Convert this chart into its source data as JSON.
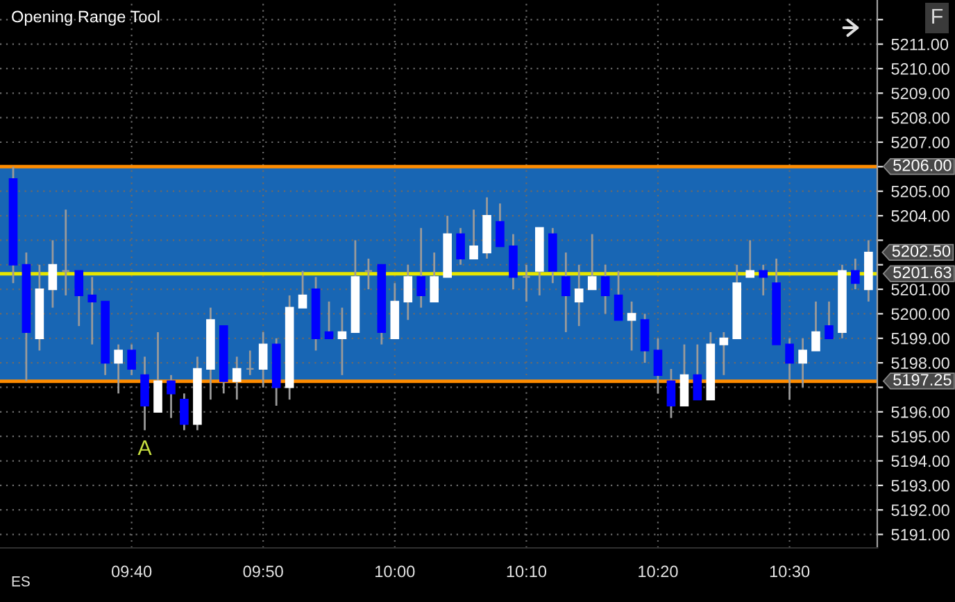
{
  "chart_data": {
    "type": "candlestick",
    "title": "Opening Range Tool",
    "x": [
      9.5167,
      9.5333,
      9.55,
      9.5667,
      9.5833,
      9.6,
      9.6167,
      9.6333,
      9.65,
      9.6667,
      9.6833,
      9.7,
      9.7167,
      9.7333,
      9.75,
      9.7667,
      9.7833,
      9.8,
      9.8167,
      9.8333,
      9.85,
      9.8667,
      9.8833,
      9.9,
      9.9167,
      9.9333,
      9.95,
      9.9667,
      9.9833,
      10,
      10.0167,
      10.0333,
      10.05,
      10.0667,
      10.0833,
      10.1,
      10.1167,
      10.1333,
      10.15,
      10.1667,
      10.1833,
      10.2,
      10.2167,
      10.2333,
      10.25,
      10.2667,
      10.2833,
      10.3,
      10.3167,
      10.3333,
      10.35,
      10.3667,
      10.3833,
      10.4,
      10.4167,
      10.4333,
      10.45,
      10.4667,
      10.4833,
      10.5,
      10.5167,
      10.5333,
      10.55,
      10.5667,
      10.5833,
      10.6
    ],
    "ohlc": [
      [
        5205.5,
        5206,
        5201.25,
        5202
      ],
      [
        5202,
        5202.5,
        5197.25,
        5199.25
      ],
      [
        5199,
        5202,
        5198.5,
        5201
      ],
      [
        5201,
        5203,
        5200.25,
        5202
      ],
      [
        5201.75,
        5204.25,
        5200.75,
        5201.75
      ],
      [
        5201.75,
        5201.75,
        5199.5,
        5200.75
      ],
      [
        5200.75,
        5201.5,
        5198.75,
        5200.5
      ],
      [
        5200.5,
        5200.5,
        5197.5,
        5198
      ],
      [
        5198,
        5198.75,
        5196.75,
        5198.5
      ],
      [
        5198.5,
        5198.75,
        5197.5,
        5197.75
      ],
      [
        5197.5,
        5198.25,
        5195.25,
        5196.25
      ],
      [
        5196,
        5199.25,
        5196,
        5197.25
      ],
      [
        5197.25,
        5197.5,
        5195.75,
        5196.75
      ],
      [
        5196.5,
        5196.75,
        5195.25,
        5195.5
      ],
      [
        5195.5,
        5198.25,
        5195.25,
        5197.75
      ],
      [
        5197.75,
        5200.25,
        5196.5,
        5199.75
      ],
      [
        5199.5,
        5199.5,
        5196.75,
        5197.25
      ],
      [
        5197.25,
        5198.25,
        5196.5,
        5197.75
      ],
      [
        5197.75,
        5198.5,
        5197.5,
        5197.75
      ],
      [
        5197.75,
        5199.25,
        5197,
        5198.75
      ],
      [
        5198.75,
        5199,
        5196.25,
        5197
      ],
      [
        5197,
        5200.75,
        5196.5,
        5200.25
      ],
      [
        5200.25,
        5201.75,
        5200.25,
        5200.75
      ],
      [
        5201,
        5201.5,
        5198.5,
        5199
      ],
      [
        5199.25,
        5200.5,
        5199,
        5199
      ],
      [
        5199,
        5200.25,
        5197.5,
        5199.25
      ],
      [
        5199.25,
        5203,
        5199.25,
        5201.5
      ],
      [
        5201.75,
        5202.25,
        5201,
        5201.75
      ],
      [
        5202,
        5202,
        5198.75,
        5199.25
      ],
      [
        5199,
        5201.25,
        5199,
        5200.5
      ],
      [
        5200.5,
        5202,
        5199.75,
        5201.5
      ],
      [
        5201.5,
        5203.5,
        5200.25,
        5200.75
      ],
      [
        5200.5,
        5202.5,
        5200.5,
        5201.5
      ],
      [
        5201.5,
        5204,
        5201.5,
        5203.25
      ],
      [
        5203.25,
        5203.5,
        5202,
        5202.25
      ],
      [
        5202.25,
        5204.25,
        5202.25,
        5202.75
      ],
      [
        5202.5,
        5204.75,
        5202.25,
        5204
      ],
      [
        5203.75,
        5204.5,
        5202.75,
        5202.75
      ],
      [
        5202.75,
        5203.25,
        5201,
        5201.5
      ],
      [
        5201.5,
        5202,
        5200.5,
        5201.5
      ],
      [
        5201.75,
        5203.5,
        5200.75,
        5203.5
      ],
      [
        5203.25,
        5203.5,
        5201.25,
        5201.75
      ],
      [
        5201.5,
        5202.5,
        5199.25,
        5200.75
      ],
      [
        5200.5,
        5202,
        5199.5,
        5201
      ],
      [
        5201,
        5203.25,
        5201,
        5201.5
      ],
      [
        5201.5,
        5202,
        5200,
        5200.75
      ],
      [
        5200.75,
        5201.75,
        5199.75,
        5199.75
      ],
      [
        5199.75,
        5200.5,
        5198.5,
        5200
      ],
      [
        5199.75,
        5200,
        5198,
        5198.5
      ],
      [
        5198.5,
        5199,
        5196.75,
        5197.5
      ],
      [
        5197.25,
        5197.75,
        5195.75,
        5196.25
      ],
      [
        5196.25,
        5198.75,
        5196.25,
        5197.5
      ],
      [
        5197.5,
        5198.75,
        5196.5,
        5196.5
      ],
      [
        5196.5,
        5199.25,
        5196.5,
        5198.75
      ],
      [
        5198.75,
        5199.25,
        5197.5,
        5199
      ],
      [
        5199,
        5202,
        5199,
        5201.25
      ],
      [
        5201.5,
        5203,
        5201.5,
        5201.75
      ],
      [
        5201.75,
        5202,
        5200.75,
        5201.5
      ],
      [
        5201.25,
        5202.25,
        5198.75,
        5198.75
      ],
      [
        5198.75,
        5199,
        5196.5,
        5198
      ],
      [
        5198,
        5199,
        5197,
        5198.5
      ],
      [
        5198.5,
        5200.5,
        5198.5,
        5199.25
      ],
      [
        5199.5,
        5200.5,
        5199,
        5199
      ],
      [
        5199.25,
        5202,
        5199,
        5201.75
      ],
      [
        5201.75,
        5202.25,
        5201,
        5201.25
      ],
      [
        5201,
        5203,
        5200.5,
        5202.5
      ]
    ],
    "colors": [
      "#0000ff",
      "#0000ff",
      "#ffffff",
      "#ffffff",
      "#9a9a9a",
      "#0000ff",
      "#0000ff",
      "#0000ff",
      "#ffffff",
      "#0000ff",
      "#0000ff",
      "#ffffff",
      "#0000ff",
      "#0000ff",
      "#ffffff",
      "#ffffff",
      "#0000ff",
      "#ffffff",
      "#9a9a9a",
      "#ffffff",
      "#0000ff",
      "#ffffff",
      "#ffffff",
      "#0000ff",
      "#0000ff",
      "#ffffff",
      "#ffffff",
      "#9a9a9a",
      "#0000ff",
      "#ffffff",
      "#ffffff",
      "#0000ff",
      "#ffffff",
      "#ffffff",
      "#0000ff",
      "#ffffff",
      "#ffffff",
      "#0000ff",
      "#0000ff",
      "#9a9a9a",
      "#ffffff",
      "#0000ff",
      "#0000ff",
      "#ffffff",
      "#ffffff",
      "#0000ff",
      "#0000ff",
      "#ffffff",
      "#0000ff",
      "#0000ff",
      "#0000ff",
      "#ffffff",
      "#0000ff",
      "#ffffff",
      "#ffffff",
      "#ffffff",
      "#ffffff",
      "#0000ff",
      "#0000ff",
      "#0000ff",
      "#ffffff",
      "#ffffff",
      "#0000ff",
      "#ffffff",
      "#0000ff",
      "#ffffff"
    ],
    "xlim": [
      9.5,
      10.6111
    ],
    "ylim": [
      5190.45,
      5212.8
    ],
    "xticks": [
      {
        "value": 9.6667,
        "label": "09:40"
      },
      {
        "value": 9.8333,
        "label": "09:50"
      },
      {
        "value": 10,
        "label": "10:00"
      },
      {
        "value": 10.1667,
        "label": "10:10"
      },
      {
        "value": 10.3333,
        "label": "10:20"
      },
      {
        "value": 10.5,
        "label": "10:30"
      }
    ],
    "yticks": [
      {
        "value": 5191,
        "label": "5191.00"
      },
      {
        "value": 5192,
        "label": "5192.00"
      },
      {
        "value": 5193,
        "label": "5193.00"
      },
      {
        "value": 5194,
        "label": "5194.00"
      },
      {
        "value": 5195,
        "label": "5195.00"
      },
      {
        "value": 5196,
        "label": "5196.00"
      },
      {
        "value": 5197,
        "label": null
      },
      {
        "value": 5198,
        "label": "5198.00"
      },
      {
        "value": 5199,
        "label": "5199.00"
      },
      {
        "value": 5200,
        "label": "5200.00"
      },
      {
        "value": 5201,
        "label": "5201.00"
      },
      {
        "value": 5202,
        "label": null
      },
      {
        "value": 5203,
        "label": null
      },
      {
        "value": 5204,
        "label": "5204.00"
      },
      {
        "value": 5205,
        "label": "5205.00"
      },
      {
        "value": 5206,
        "label": null
      },
      {
        "value": 5207,
        "label": "5207.00"
      },
      {
        "value": 5208,
        "label": "5208.00"
      },
      {
        "value": 5209,
        "label": "5209.00"
      },
      {
        "value": 5210,
        "label": "5210.00"
      },
      {
        "value": 5211,
        "label": "5211.00"
      },
      {
        "value": 5212,
        "label": null
      }
    ],
    "ref_lines": [
      {
        "axis": "y",
        "value": 5206,
        "label": "5206.00",
        "color": "#ff8c00"
      },
      {
        "axis": "y",
        "value": 5201.63,
        "label": "5201.63",
        "color": "#e6e600"
      },
      {
        "axis": "y",
        "value": 5197.25,
        "label": "5197.25",
        "color": "#ff8c00"
      }
    ],
    "bands": [
      {
        "axis": "y",
        "from": 5197.25,
        "to": 5206,
        "color": "#1866b4"
      }
    ],
    "annotations": [
      {
        "text": "A",
        "x": 9.6833,
        "y": 5195.25
      },
      {
        "text": "5202.50",
        "x": 10.6,
        "y": 5202.5
      },
      "ES",
      "F"
    ],
    "grid": true
  }
}
